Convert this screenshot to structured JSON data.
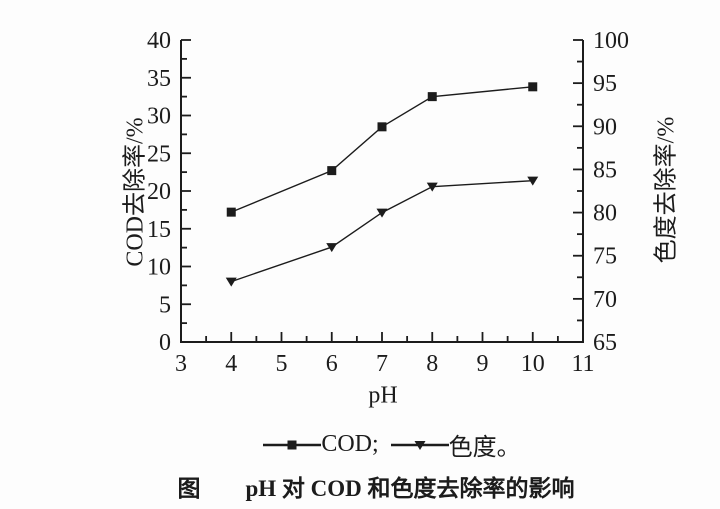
{
  "chart_data": {
    "type": "line",
    "x": [
      4,
      6,
      7,
      8,
      10
    ],
    "series": [
      {
        "name": "COD",
        "axis": "left",
        "marker": "square",
        "values": [
          17.2,
          22.7,
          28.5,
          32.5,
          33.8
        ]
      },
      {
        "name": "色度",
        "axis": "right",
        "marker": "triangle-down",
        "values": [
          72,
          76,
          80,
          83,
          83.7
        ]
      }
    ],
    "x_axis": {
      "label": "pH",
      "min": 3,
      "max": 11,
      "major_step": 1,
      "minor_step": 0.5
    },
    "left_axis": {
      "label": "COD去除率/%",
      "min": 0,
      "max": 40,
      "major_step": 5,
      "minor_step": 2.5
    },
    "right_axis": {
      "label": "色度去除率/%",
      "min": 65,
      "max": 100,
      "major_step": 5,
      "minor_step": 2.5
    },
    "grid": false,
    "line_color": "#1c1c1c",
    "legend_position": "below"
  },
  "legend": {
    "items": [
      {
        "marker": "square",
        "label": "COD;"
      },
      {
        "marker": "triangle-down",
        "label": "色度。"
      }
    ]
  },
  "caption": {
    "prefix": "图",
    "text": "pH 对 COD 和色度去除率的影响"
  }
}
